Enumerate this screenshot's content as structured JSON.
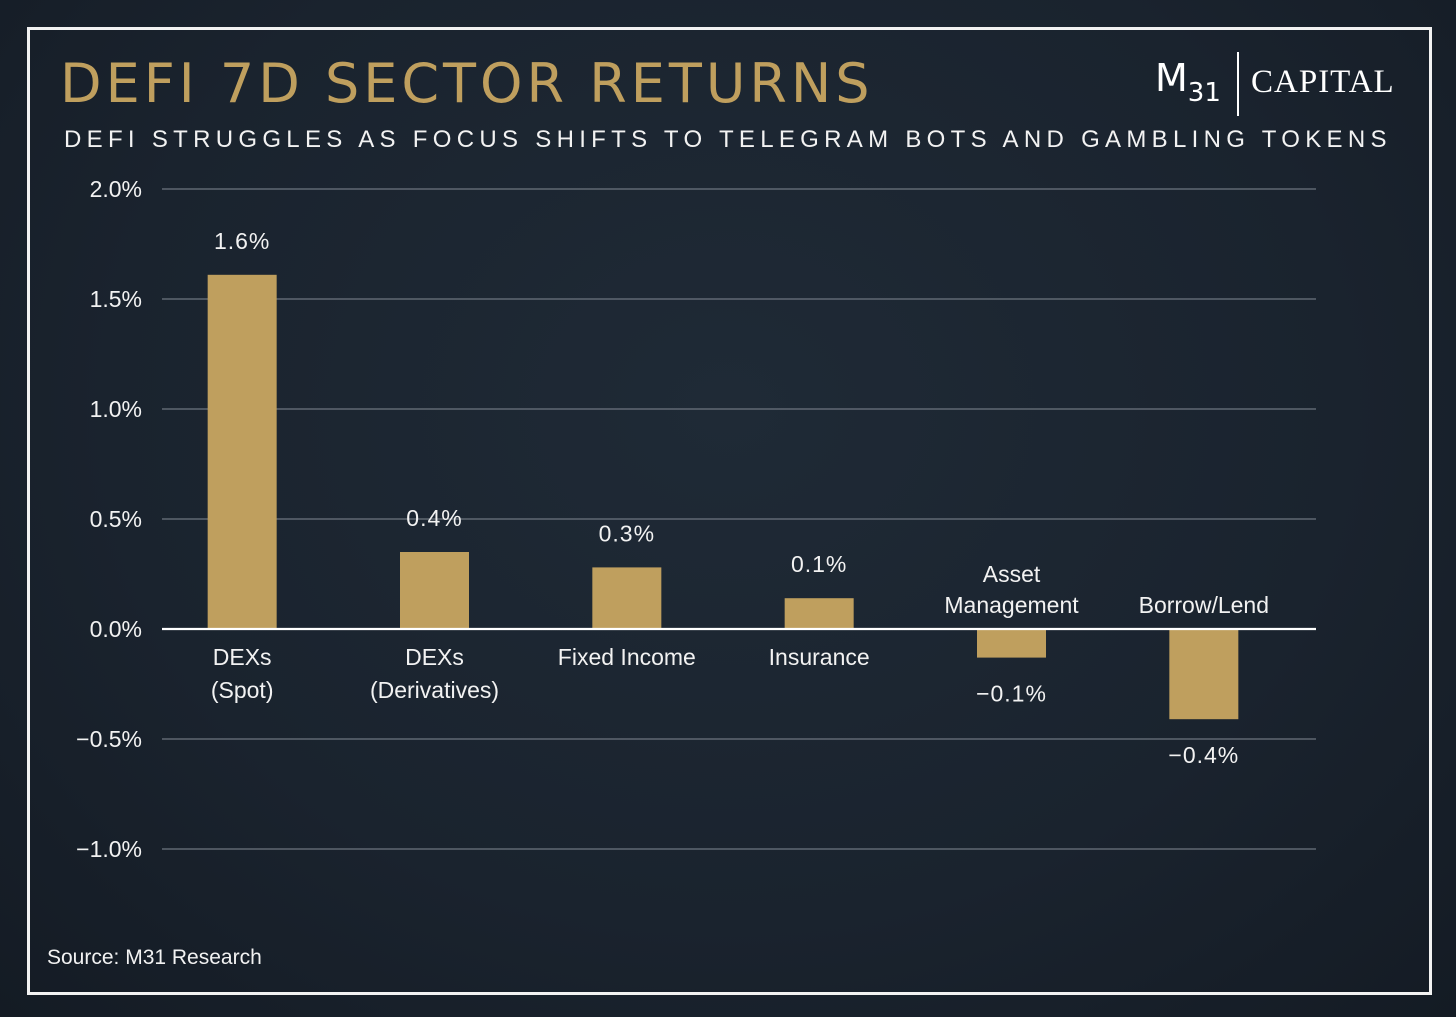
{
  "header": {
    "title": "DEFI 7D SECTOR RETURNS",
    "subtitle": "DEFI STRUGGLES AS FOCUS SHIFTS TO TELEGRAM BOTS AND GAMBLING TOKENS"
  },
  "logo": {
    "mark": "M",
    "mark_sub": "31",
    "wordmark": "CAPITAL"
  },
  "footer": {
    "source": "Source: M31 Research"
  },
  "colors": {
    "accent": "#bf9f5e",
    "bar": "#bf9f5e",
    "text": "#f2f2f2",
    "background": "#1b2430",
    "grid": "#6e7680"
  },
  "chart_data": {
    "type": "bar",
    "title": "DEFI 7D SECTOR RETURNS",
    "subtitle": "DEFI STRUGGLES AS FOCUS SHIFTS TO TELEGRAM BOTS AND GAMBLING TOKENS",
    "categories": [
      [
        "DEXs",
        "(Spot)"
      ],
      [
        "DEXs",
        "(Derivatives)"
      ],
      [
        "Fixed Income"
      ],
      [
        "Insurance"
      ],
      [
        "Asset",
        "Management"
      ],
      [
        "Borrow/Lend"
      ]
    ],
    "values": [
      1.61,
      0.35,
      0.28,
      0.14,
      -0.13,
      -0.41
    ],
    "value_labels": [
      "1.6%",
      "0.4%",
      "0.3%",
      "0.1%",
      "−0.1%",
      "−0.4%"
    ],
    "ylim": [
      -1.0,
      2.0
    ],
    "yticks": [
      2.0,
      1.5,
      1.0,
      0.5,
      0.0,
      -0.5,
      -1.0
    ],
    "ytick_labels": [
      "2.0%",
      "1.5%",
      "1.0%",
      "0.5%",
      "0.0%",
      "−0.5%",
      "−1.0%"
    ],
    "xlabel": "",
    "ylabel": "",
    "grid": true,
    "legend": "none"
  }
}
